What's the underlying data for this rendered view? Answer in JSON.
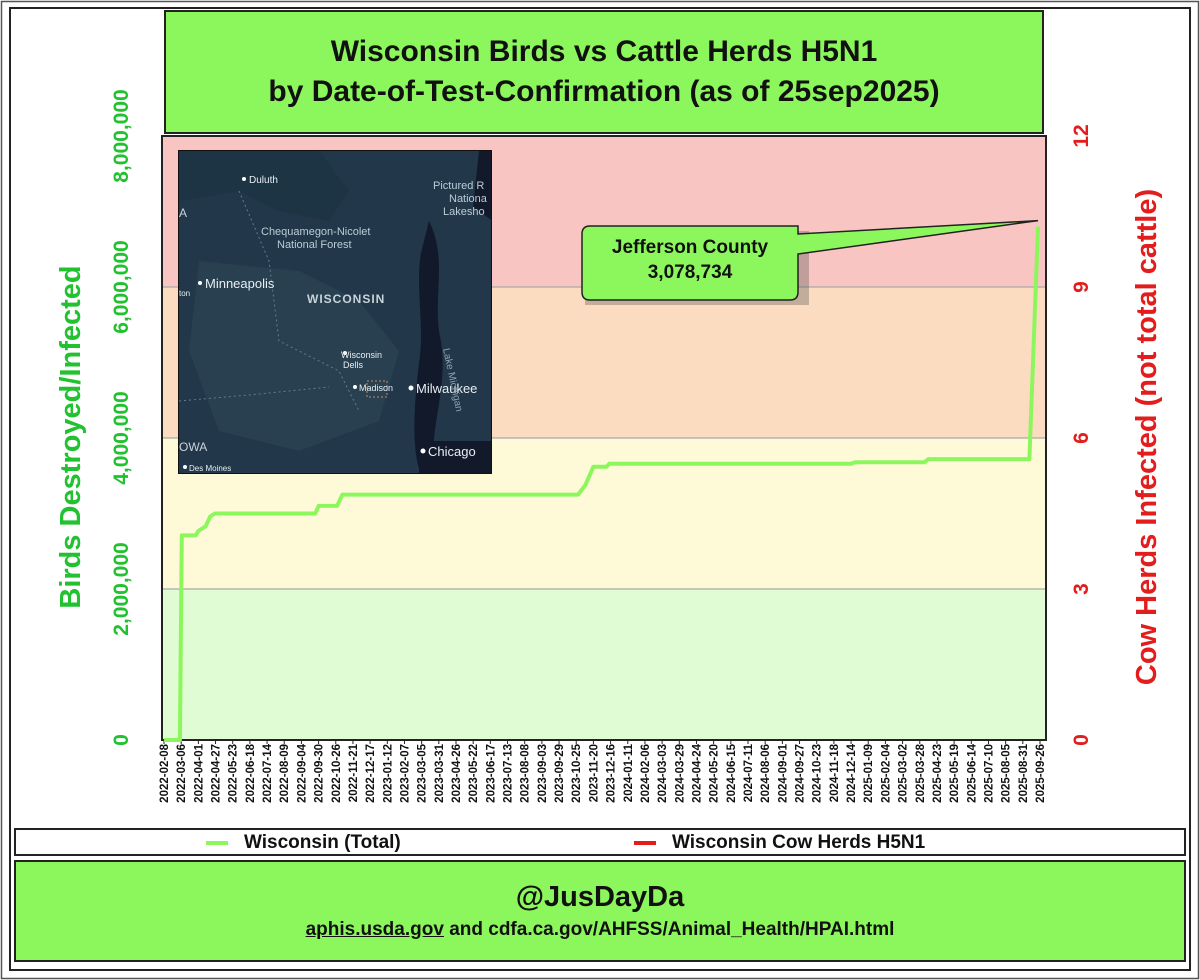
{
  "chart_data": {
    "type": "line",
    "title": "Wisconsin Birds vs Cattle Herds H5N1",
    "subtitle": "by Date-of-Test-Confirmation (as of 25sep2025)",
    "ylabel_left": "Birds Destroyed/Infected",
    "ylabel_right": "Cow Herds Infected (not total cattle)",
    "ylim_left": [
      0,
      8000000
    ],
    "ylim_right": [
      0,
      12
    ],
    "y_ticks_left": [
      "0",
      "2,000,000",
      "4,000,000",
      "6,000,000",
      "8,000,000"
    ],
    "y_ticks_left_values": [
      0,
      2000000,
      4000000,
      6000000,
      8000000
    ],
    "y_ticks_right": [
      "0",
      "3",
      "6",
      "9",
      "12"
    ],
    "y_ticks_right_values": [
      0,
      3,
      6,
      9,
      12
    ],
    "x_tick_labels": [
      "2022-02-08",
      "2022-03-06",
      "2022-04-01",
      "2022-04-27",
      "2022-05-23",
      "2022-06-18",
      "2022-07-14",
      "2022-08-09",
      "2022-09-04",
      "2022-09-30",
      "2022-10-26",
      "2022-11-21",
      "2022-12-17",
      "2023-01-12",
      "2023-02-07",
      "2023-03-05",
      "2023-03-31",
      "2023-04-26",
      "2023-05-22",
      "2023-06-17",
      "2023-07-13",
      "2023-08-08",
      "2023-09-03",
      "2023-09-29",
      "2023-10-25",
      "2023-11-20",
      "2023-12-16",
      "2024-01-11",
      "2024-02-06",
      "2024-03-03",
      "2024-03-29",
      "2024-04-24",
      "2024-05-20",
      "2024-06-15",
      "2024-07-11",
      "2024-08-06",
      "2024-09-01",
      "2024-09-27",
      "2024-10-23",
      "2024-11-18",
      "2024-12-14",
      "2025-01-09",
      "2025-02-04",
      "2025-03-02",
      "2025-03-28",
      "2025-04-23",
      "2025-05-19",
      "2025-06-14",
      "2025-07-10",
      "2025-08-05",
      "2025-08-31",
      "2025-09-26"
    ],
    "bands": [
      {
        "from": 0,
        "to": 2000000,
        "color": "#e0fcd4"
      },
      {
        "from": 2000000,
        "to": 4000000,
        "color": "#fefad8"
      },
      {
        "from": 4000000,
        "to": 6000000,
        "color": "#fcdcc0"
      },
      {
        "from": 6000000,
        "to": 8000000,
        "color": "#f9c5c2"
      }
    ],
    "series": [
      {
        "name": "Wisconsin (Total)",
        "color": "#8cf75c",
        "points": [
          [
            "2022-02-08",
            0
          ],
          [
            "2022-03-04",
            0
          ],
          [
            "2022-03-07",
            2710000
          ],
          [
            "2022-03-28",
            2710000
          ],
          [
            "2022-04-01",
            2770000
          ],
          [
            "2022-04-12",
            2830000
          ],
          [
            "2022-04-19",
            2960000
          ],
          [
            "2022-04-26",
            3000000
          ],
          [
            "2022-09-25",
            3000000
          ],
          [
            "2022-09-30",
            3100000
          ],
          [
            "2022-10-28",
            3100000
          ],
          [
            "2022-11-05",
            3250000
          ],
          [
            "2023-10-28",
            3250000
          ],
          [
            "2023-11-08",
            3380000
          ],
          [
            "2023-11-20",
            3620000
          ],
          [
            "2023-12-10",
            3620000
          ],
          [
            "2023-12-14",
            3660000
          ],
          [
            "2024-12-14",
            3660000
          ],
          [
            "2024-12-20",
            3680000
          ],
          [
            "2025-04-04",
            3680000
          ],
          [
            "2025-04-10",
            3720000
          ],
          [
            "2025-09-10",
            3720000
          ],
          [
            "2025-09-23",
            6800000
          ]
        ]
      },
      {
        "name": "Wisconsin Cow Herds H5N1",
        "color": "#e31c1c",
        "points": []
      }
    ],
    "annotations": [
      {
        "line1": "Jefferson County",
        "line2": "3,078,734",
        "points_to": [
          "2025-09-23",
          6800000
        ]
      }
    ],
    "grid": true,
    "legend_placement": "bottom"
  },
  "map": {
    "labels": {
      "duluth": "Duluth",
      "pictured_rocks": "Pictured R",
      "nationa": "Nationa",
      "lakesho": "Lakesho",
      "chequamegon": "Chequamegon-Nicolet",
      "national_forest": "National Forest",
      "minneapolis": "Minneapolis",
      "wisconsin": "WISCONSIN",
      "wisconsin_dells_1": "Wisconsin",
      "wisconsin_dells_2": "Dells",
      "lake_michigan": "Lake Michigan",
      "madison": "Madison",
      "milwaukee": "Milwaukee",
      "chicago": "Chicago",
      "des_moines": "Des Moines",
      "owa": "OWA",
      "a": "A",
      "ton": "ton"
    }
  },
  "footer": {
    "handle": "@JusDayDa",
    "source_link": "aphis.usda.gov",
    "source_rest": "and cdfa.ca.gov/AHFSS/Animal_Health/HPAI.html"
  }
}
